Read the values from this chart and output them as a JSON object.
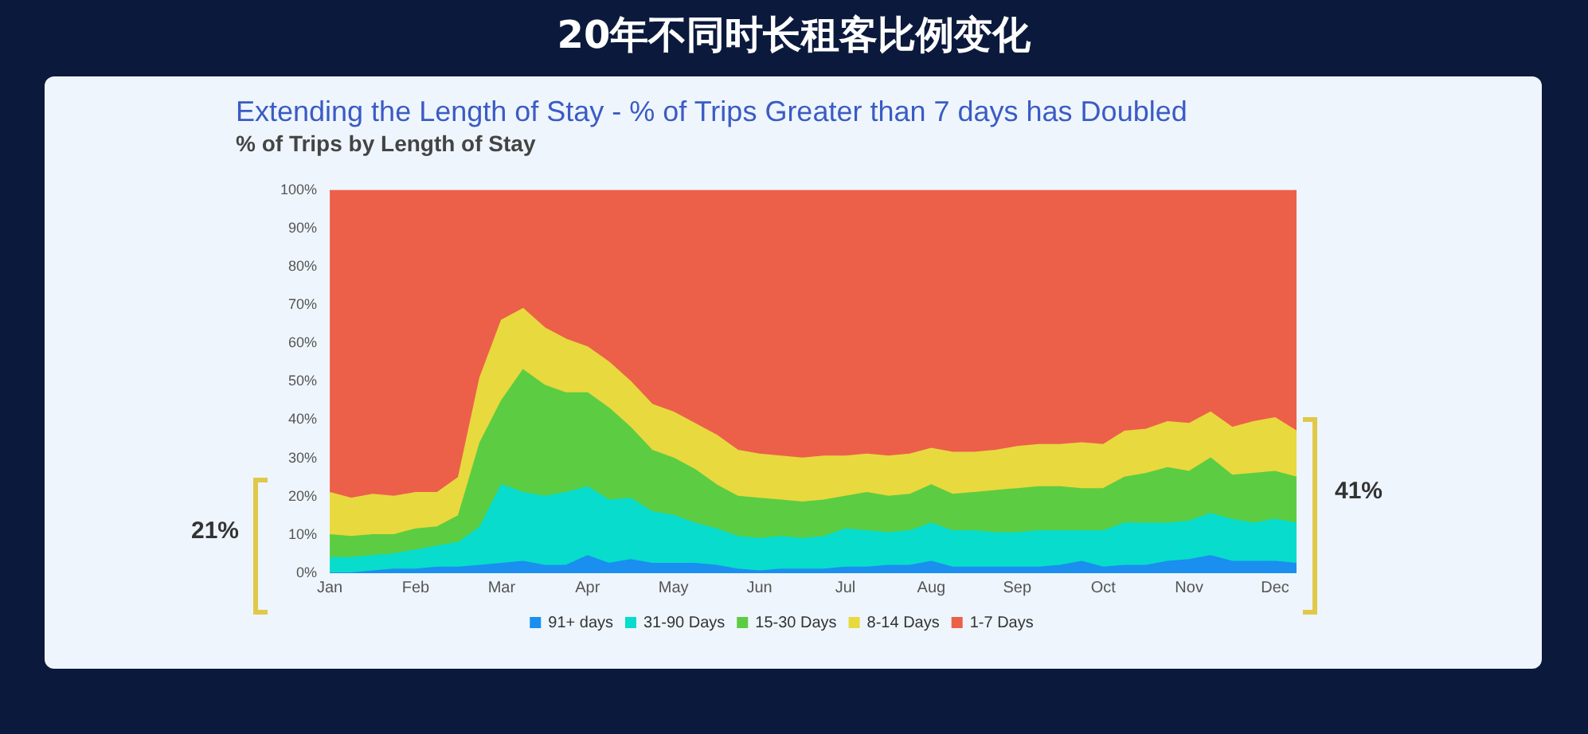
{
  "chart_data": {
    "type": "area",
    "title": "20年不同时长租客比例变化",
    "subtitle": "Extending the Length of Stay - % of Trips Greater than 7 days has Doubled",
    "ylabel": "% of Trips by Length of Stay",
    "categories": [
      "Jan",
      null,
      null,
      null,
      "Feb",
      null,
      null,
      null,
      "Mar",
      null,
      null,
      null,
      "Apr",
      null,
      null,
      null,
      "May",
      null,
      null,
      null,
      "Jun",
      null,
      null,
      null,
      "Jul",
      null,
      null,
      null,
      "Aug",
      null,
      null,
      null,
      "Sep",
      null,
      null,
      null,
      "Oct",
      null,
      null,
      null,
      "Nov",
      null,
      null,
      null,
      "Dec",
      null
    ],
    "stacked": true,
    "ylim": [
      0,
      100
    ],
    "yticks": [
      {
        "value": 0,
        "label": "0%"
      },
      {
        "value": 10,
        "label": "10%"
      },
      {
        "value": 20,
        "label": "20%"
      },
      {
        "value": 30,
        "label": "30%"
      },
      {
        "value": 40,
        "label": "40%"
      },
      {
        "value": 50,
        "label": "50%"
      },
      {
        "value": 60,
        "label": "60%"
      },
      {
        "value": 70,
        "label": "70%"
      },
      {
        "value": 80,
        "label": "80%"
      },
      {
        "value": 90,
        "label": "90%"
      },
      {
        "value": 100,
        "label": "100%"
      }
    ],
    "grid": false,
    "legend": "bottom",
    "marker": "none",
    "series": [
      {
        "name": "91+ days",
        "color": "#1a8ff0",
        "values": [
          0,
          0,
          0.5,
          1,
          1,
          1.5,
          1.5,
          2,
          2.5,
          3,
          2,
          2,
          4.5,
          2.5,
          3.5,
          2.5,
          2.5,
          2.5,
          2,
          1,
          0.5,
          1,
          1,
          1,
          1.5,
          1.5,
          2,
          2,
          3,
          1.5,
          1.5,
          1.5,
          1.5,
          1.5,
          2,
          3,
          1.5,
          2,
          2,
          3,
          3.5,
          4.5,
          3,
          3,
          3,
          2.5
        ]
      },
      {
        "name": "31-90 Days",
        "color": "#08dccc",
        "values": [
          4,
          4,
          4,
          4,
          5,
          5.5,
          6.5,
          10,
          20.5,
          18,
          18,
          19,
          18,
          16.5,
          16,
          13.5,
          12.5,
          10.5,
          9.5,
          8.5,
          8.5,
          8.5,
          8,
          8.5,
          10,
          9.5,
          8.5,
          9,
          10,
          9.5,
          9.5,
          9,
          9,
          9.5,
          9,
          8,
          9.5,
          11,
          11,
          10,
          10,
          11,
          11,
          10,
          11,
          10.5
        ]
      },
      {
        "name": "15-30 Days",
        "color": "#5ccd42",
        "values": [
          6,
          5.5,
          5.5,
          5,
          5.5,
          5,
          7,
          22,
          22,
          32,
          29,
          26,
          24.5,
          24,
          18.5,
          16,
          15,
          14,
          11.5,
          10.5,
          10.5,
          9.5,
          9.5,
          9.5,
          8.5,
          10,
          9.5,
          9.5,
          10,
          9.5,
          10,
          11,
          11.5,
          11.5,
          11.5,
          11,
          11,
          12,
          13,
          14.5,
          13,
          14.5,
          11.5,
          13,
          12.5,
          12
        ]
      },
      {
        "name": "8-14 Days",
        "color": "#e8d93e",
        "values": [
          11,
          10,
          10.5,
          10,
          9.5,
          9,
          10,
          17,
          21,
          16,
          15,
          14,
          12,
          12,
          12,
          12,
          12,
          12,
          13,
          12,
          11.5,
          11.5,
          11.5,
          11.5,
          10.5,
          10,
          10.5,
          10.5,
          9.5,
          11,
          10.5,
          10.5,
          11,
          11,
          11,
          12,
          11.5,
          12,
          11.5,
          12,
          12.5,
          12,
          12.5,
          13.5,
          14,
          12
        ]
      },
      {
        "name": "1-7 Days",
        "color": "#ec604a",
        "values": [
          79,
          80.5,
          79.5,
          80,
          79,
          79,
          75,
          49,
          34,
          31,
          36,
          39,
          41,
          45,
          50,
          56,
          58,
          61,
          64,
          68,
          69,
          69.5,
          70,
          69.5,
          69.5,
          69,
          69.5,
          69,
          67.5,
          68.5,
          68.5,
          68,
          67,
          66.5,
          66.5,
          66,
          66.5,
          63,
          62.5,
          60.5,
          61,
          58,
          62,
          60.5,
          59.5,
          63
        ]
      }
    ],
    "annotations": [
      "21%",
      "41%"
    ]
  }
}
